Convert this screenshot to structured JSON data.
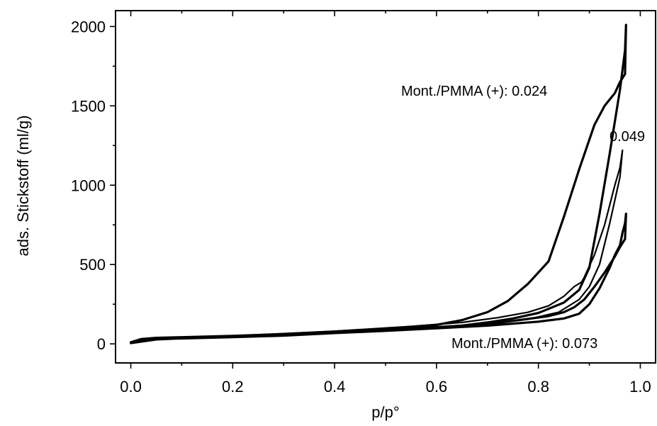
{
  "chart_data": {
    "type": "line",
    "xlabel": "p/p°",
    "ylabel": "ads. Stickstoff (ml/g)",
    "xlim": [
      -0.03,
      1.03
    ],
    "ylim": [
      -120,
      2100
    ],
    "x_ticks": [
      "0.0",
      "0.2",
      "0.4",
      "0.6",
      "0.8",
      "1.0"
    ],
    "y_ticks": [
      "0",
      "500",
      "1000",
      "1500",
      "2000"
    ],
    "annotations": [
      {
        "text": "Mont./PMMA (+): 0.024"
      },
      {
        "text": "0.049"
      },
      {
        "text": "Mont./PMMA (+): 0.073"
      }
    ],
    "series": [
      {
        "x": [
          0.0,
          0.02,
          0.05,
          0.1,
          0.2,
          0.3,
          0.4,
          0.5,
          0.6,
          0.65,
          0.7,
          0.75,
          0.8,
          0.85,
          0.88,
          0.9,
          0.92,
          0.94,
          0.96,
          0.97,
          0.972,
          0.97,
          0.96,
          0.95,
          0.93,
          0.91,
          0.88,
          0.85,
          0.82,
          0.78,
          0.74,
          0.7,
          0.65,
          0.6,
          0.5,
          0.4,
          0.3,
          0.2,
          0.1,
          0.05,
          0.02,
          0.0
        ],
        "y": [
          10,
          30,
          38,
          42,
          50,
          62,
          78,
          90,
          105,
          115,
          135,
          160,
          195,
          260,
          340,
          480,
          820,
          1200,
          1600,
          1850,
          2010,
          1700,
          1650,
          1580,
          1500,
          1380,
          1100,
          800,
          520,
          380,
          270,
          200,
          150,
          120,
          95,
          78,
          62,
          48,
          38,
          32,
          25,
          10
        ]
      },
      {
        "x": [
          0.0,
          0.02,
          0.05,
          0.1,
          0.2,
          0.3,
          0.4,
          0.5,
          0.6,
          0.7,
          0.78,
          0.84,
          0.88,
          0.9,
          0.92,
          0.94,
          0.96,
          0.965,
          0.96,
          0.95,
          0.93,
          0.91,
          0.89,
          0.885,
          0.87,
          0.85,
          0.82,
          0.78,
          0.72,
          0.65,
          0.55,
          0.4,
          0.2,
          0.05,
          0.0
        ],
        "y": [
          10,
          28,
          35,
          40,
          48,
          58,
          72,
          85,
          100,
          125,
          155,
          200,
          280,
          360,
          500,
          760,
          1050,
          1220,
          1110,
          1000,
          750,
          560,
          420,
          390,
          360,
          300,
          240,
          200,
          165,
          135,
          110,
          80,
          50,
          30,
          10
        ]
      },
      {
        "x": [
          0.0,
          0.02,
          0.05,
          0.1,
          0.2,
          0.3,
          0.4,
          0.5,
          0.6,
          0.7,
          0.8,
          0.85,
          0.88,
          0.9,
          0.92,
          0.94,
          0.95,
          0.96,
          0.965,
          0.97,
          0.972,
          0.97,
          0.96,
          0.95,
          0.93,
          0.91,
          0.89,
          0.87,
          0.85,
          0.82,
          0.75,
          0.7,
          0.6,
          0.5,
          0.4,
          0.3,
          0.2,
          0.1,
          0.05,
          0.0
        ],
        "y": [
          5,
          22,
          30,
          34,
          42,
          52,
          68,
          82,
          98,
          115,
          140,
          160,
          190,
          250,
          350,
          480,
          560,
          620,
          700,
          760,
          820,
          660,
          610,
          550,
          450,
          360,
          280,
          230,
          200,
          175,
          145,
          125,
          105,
          88,
          72,
          58,
          45,
          35,
          28,
          5
        ]
      }
    ]
  }
}
